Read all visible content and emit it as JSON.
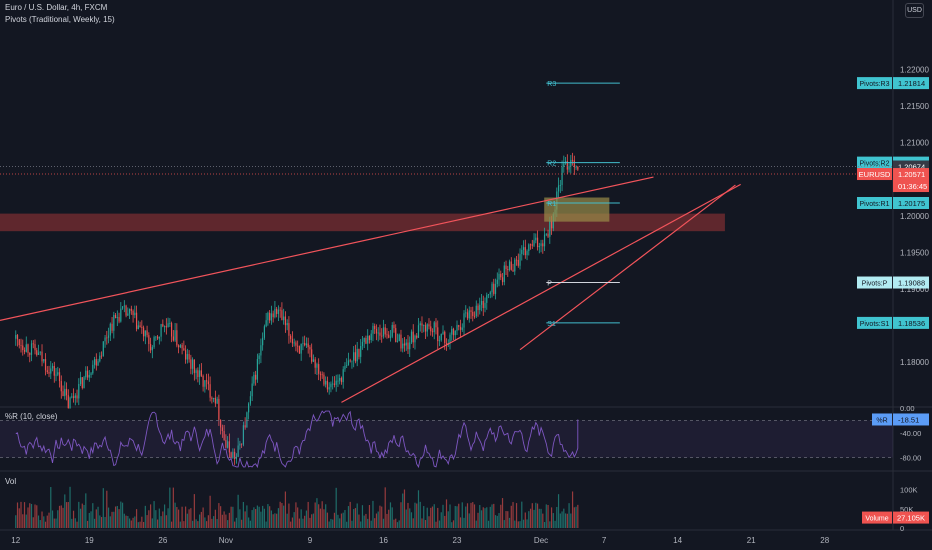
{
  "header": {
    "symbol_line": "Euro / U.S. Dollar, 4h, FXCM",
    "indicator_line": "Pivots (Traditional, Weekly, 15)",
    "currency_button": "USD"
  },
  "chart_data": {
    "type": "candlestick",
    "price_axis": {
      "range": [
        1.174,
        1.2295
      ],
      "ticks": [
        "1.22000",
        "1.21500",
        "1.21000",
        "1.20500",
        "1.20000",
        "1.19500",
        "1.19000",
        "1.18500",
        "1.18000"
      ],
      "tick_values": [
        1.22,
        1.215,
        1.21,
        1.205,
        1.2,
        1.195,
        1.19,
        1.185,
        1.18
      ]
    },
    "time_axis": {
      "labels": [
        "12",
        "19",
        "26",
        "Nov",
        "9",
        "16",
        "23",
        "Dec",
        "7",
        "14",
        "21",
        "28"
      ],
      "label_days": [
        0,
        7,
        14,
        20,
        28,
        35,
        42,
        50,
        56,
        63,
        70,
        77
      ],
      "domain_days": [
        -1.5,
        83.5
      ]
    },
    "close_path": [
      [
        0,
        1.1832
      ],
      [
        1,
        1.1822
      ],
      [
        2,
        1.1812
      ],
      [
        3,
        1.1795
      ],
      [
        4,
        1.1781
      ],
      [
        5,
        1.1742
      ],
      [
        6,
        1.1765
      ],
      [
        7,
        1.1791
      ],
      [
        8,
        1.1811
      ],
      [
        9,
        1.185
      ],
      [
        10,
        1.1868
      ],
      [
        11,
        1.1864
      ],
      [
        12,
        1.1842
      ],
      [
        13,
        1.1818
      ],
      [
        14,
        1.1851
      ],
      [
        15,
        1.1838
      ],
      [
        16,
        1.1811
      ],
      [
        17,
        1.179
      ],
      [
        18,
        1.177
      ],
      [
        19,
        1.1752
      ],
      [
        20,
        1.1685
      ],
      [
        21,
        1.1668
      ],
      [
        22,
        1.1726
      ],
      [
        23,
        1.1798
      ],
      [
        24,
        1.1862
      ],
      [
        25,
        1.1869
      ],
      [
        26,
        1.1838
      ],
      [
        27,
        1.182
      ],
      [
        28,
        1.1812
      ],
      [
        29,
        1.1788
      ],
      [
        30,
        1.1765
      ],
      [
        31,
        1.1781
      ],
      [
        32,
        1.1804
      ],
      [
        33,
        1.1825
      ],
      [
        34,
        1.1844
      ],
      [
        35,
        1.1841
      ],
      [
        36,
        1.1841
      ],
      [
        37,
        1.182
      ],
      [
        38,
        1.1838
      ],
      [
        39,
        1.185
      ],
      [
        40,
        1.1842
      ],
      [
        41,
        1.1828
      ],
      [
        42,
        1.1845
      ],
      [
        43,
        1.1868
      ],
      [
        44,
        1.1873
      ],
      [
        45,
        1.189
      ],
      [
        46,
        1.1915
      ],
      [
        47,
        1.1931
      ],
      [
        48,
        1.1942
      ],
      [
        49,
        1.1958
      ],
      [
        50,
        1.1964
      ],
      [
        51,
        1.1991
      ],
      [
        52,
        1.2061
      ],
      [
        53,
        1.208
      ],
      [
        53.5,
        1.2065
      ]
    ],
    "pivots": {
      "levels": [
        {
          "name": "R3",
          "value": 1.21814,
          "label": "Pivots:R3",
          "price_text": "1.21814"
        },
        {
          "name": "R2",
          "value": 1.20727,
          "label": "Pivots:R2",
          "price_text": "1.20727"
        },
        {
          "name": "R1",
          "value": 1.20175,
          "label": "Pivots:R1",
          "price_text": "1.20175"
        },
        {
          "name": "P",
          "value": 1.19088,
          "label": "Pivots:P",
          "price_text": "1.19088"
        },
        {
          "name": "S1",
          "value": 1.18536,
          "label": "Pivots:S1",
          "price_text": "1.18536"
        }
      ],
      "from_day": 50.5,
      "to_day": 57.5
    },
    "price_markers": [
      {
        "value": 1.20674,
        "text": "1.20674",
        "style": "dark"
      },
      {
        "symbol": "EURUSD",
        "value": 1.20571,
        "text": "1.20571",
        "timer": "01:36:45",
        "style": "red"
      }
    ],
    "drawings": {
      "resistance_zone": {
        "day_from": -1.5,
        "day_to": 67.5,
        "price_top": 1.2003,
        "price_bottom": 1.1979,
        "color": "#7a2e32"
      },
      "breakout_box": {
        "day_from": 50.3,
        "day_to": 56.5,
        "price_top": 1.2025,
        "price_bottom": 1.1992,
        "color": "#9a8d48"
      },
      "wedge_upper_line": {
        "from": [
          -1.5,
          1.1857
        ],
        "to": [
          60.7,
          1.2053
        ]
      },
      "wedge_lower_line": {
        "from": [
          48.0,
          1.1817
        ],
        "to": [
          68.5,
          1.2042
        ]
      },
      "channel_line": {
        "from": [
          31.0,
          1.1745
        ],
        "to": [
          69.0,
          1.2043
        ]
      },
      "trend_color": "#f2545b"
    },
    "williams_r": {
      "label": "%R (10, close)",
      "ticks": [
        "0.00",
        "-40.00",
        "-80.00"
      ],
      "tick_values": [
        0,
        -40,
        -80
      ],
      "range": [
        -100,
        0
      ],
      "bands": [
        -20,
        -80
      ],
      "current": {
        "name": "%R",
        "text": "-18.51",
        "value": -18.51
      },
      "seed": 7
    },
    "volume": {
      "label": "Vol",
      "ticks": [
        "100K",
        "50K",
        "0"
      ],
      "tick_values": [
        100000,
        50000,
        0
      ],
      "max": 130000,
      "current": {
        "name": "Volume",
        "text": "27.105K",
        "value": 27105
      }
    },
    "colors": {
      "up": "#26a69a",
      "down": "#ef5350",
      "pivot": "#42bdcc",
      "pivot_label_bg": "#40c4d0",
      "pivot_p_bg": "#b2ebf2",
      "wr_line": "#7e57c2"
    }
  }
}
